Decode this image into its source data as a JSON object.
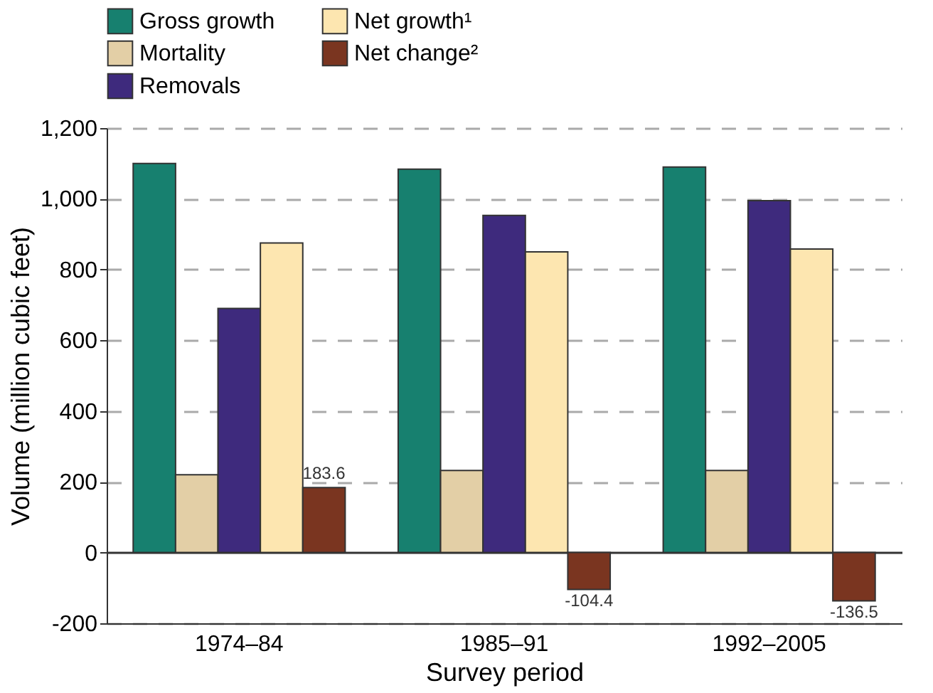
{
  "chart_data": {
    "type": "bar",
    "xlabel": "Survey period",
    "ylabel": "Volume (million cubic feet)",
    "categories": [
      "1974–84",
      "1985–91",
      "1992–2005"
    ],
    "series": [
      {
        "name": "Gross growth",
        "color": "#17806f",
        "values": [
          1100,
          1084,
          1090
        ]
      },
      {
        "name": "Mortality",
        "color": "#e3cfa6",
        "values": [
          220,
          232,
          232
        ]
      },
      {
        "name": "Removals",
        "color": "#3e2a7d",
        "values": [
          690,
          953,
          995
        ]
      },
      {
        "name": "Net growth¹",
        "color": "#fde6b0",
        "values": [
          875,
          850,
          858
        ]
      },
      {
        "name": "Net change²",
        "color": "#7a3520",
        "values": [
          183.6,
          -104.4,
          -136.5
        ],
        "value_labels": [
          "183.6",
          "-104.4",
          "-136.5"
        ]
      }
    ],
    "ylim": [
      -200,
      1200
    ],
    "yticks": [
      {
        "value": -200,
        "label": "-200"
      },
      0,
      200,
      400,
      600,
      800,
      {
        "value": 1000,
        "label": "1,000"
      },
      {
        "value": 1200,
        "label": "1,200"
      }
    ],
    "grid": "y",
    "legend": "top"
  }
}
